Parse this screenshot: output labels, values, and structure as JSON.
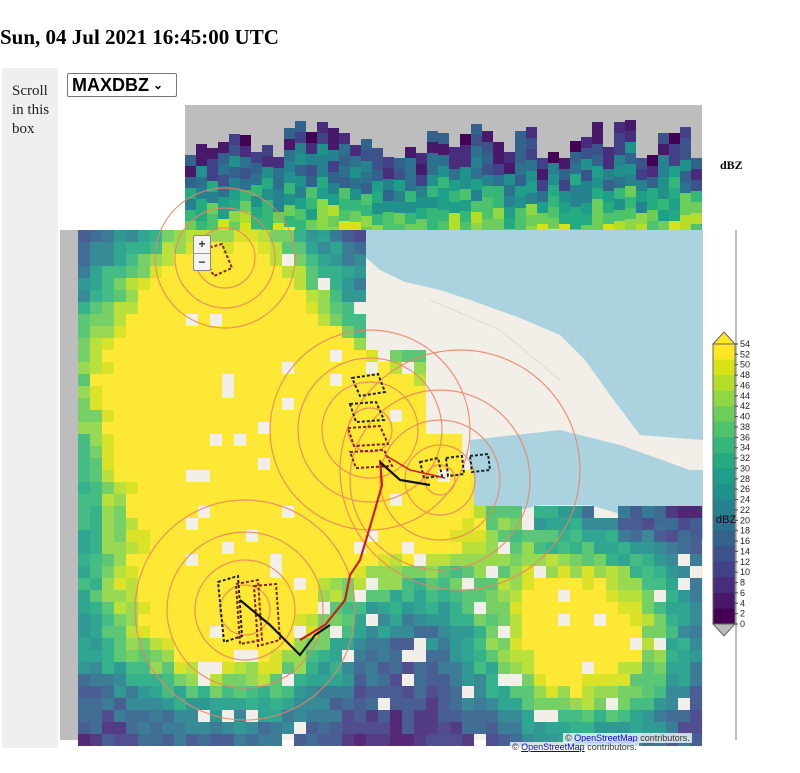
{
  "timestamp": "Sun, 04 Jul 2021 16:45:00 UTC",
  "scroll_hint": "Scroll in this box",
  "field_select": {
    "value": "MAXDBZ",
    "options": [
      "MAXDBZ"
    ]
  },
  "map": {
    "zoom_in": "+",
    "zoom_out": "−",
    "attribution_prefix": "©",
    "attribution_link": "OpenStreetMap",
    "attribution_suffix": "contributors."
  },
  "colorbar": {
    "unit": "dBZ",
    "unit_top": "dBZ",
    "ticks": [
      "54",
      "52",
      "50",
      "48",
      "46",
      "44",
      "42",
      "40",
      "38",
      "36",
      "34",
      "32",
      "30",
      "28",
      "26",
      "24",
      "22",
      "20",
      "18",
      "16",
      "14",
      "12",
      "10",
      "8",
      "6",
      "4",
      "2",
      "0"
    ],
    "colors": [
      "#fde725",
      "#d8e219",
      "#b5de2b",
      "#8fd744",
      "#6ccd5a",
      "#4ec36b",
      "#35b779",
      "#25ab82",
      "#1f9e89",
      "#21918c",
      "#26828e",
      "#2c728e",
      "#33638d",
      "#3b528b",
      "#424086",
      "#472d7b",
      "#48186a",
      "#440154"
    ]
  }
}
